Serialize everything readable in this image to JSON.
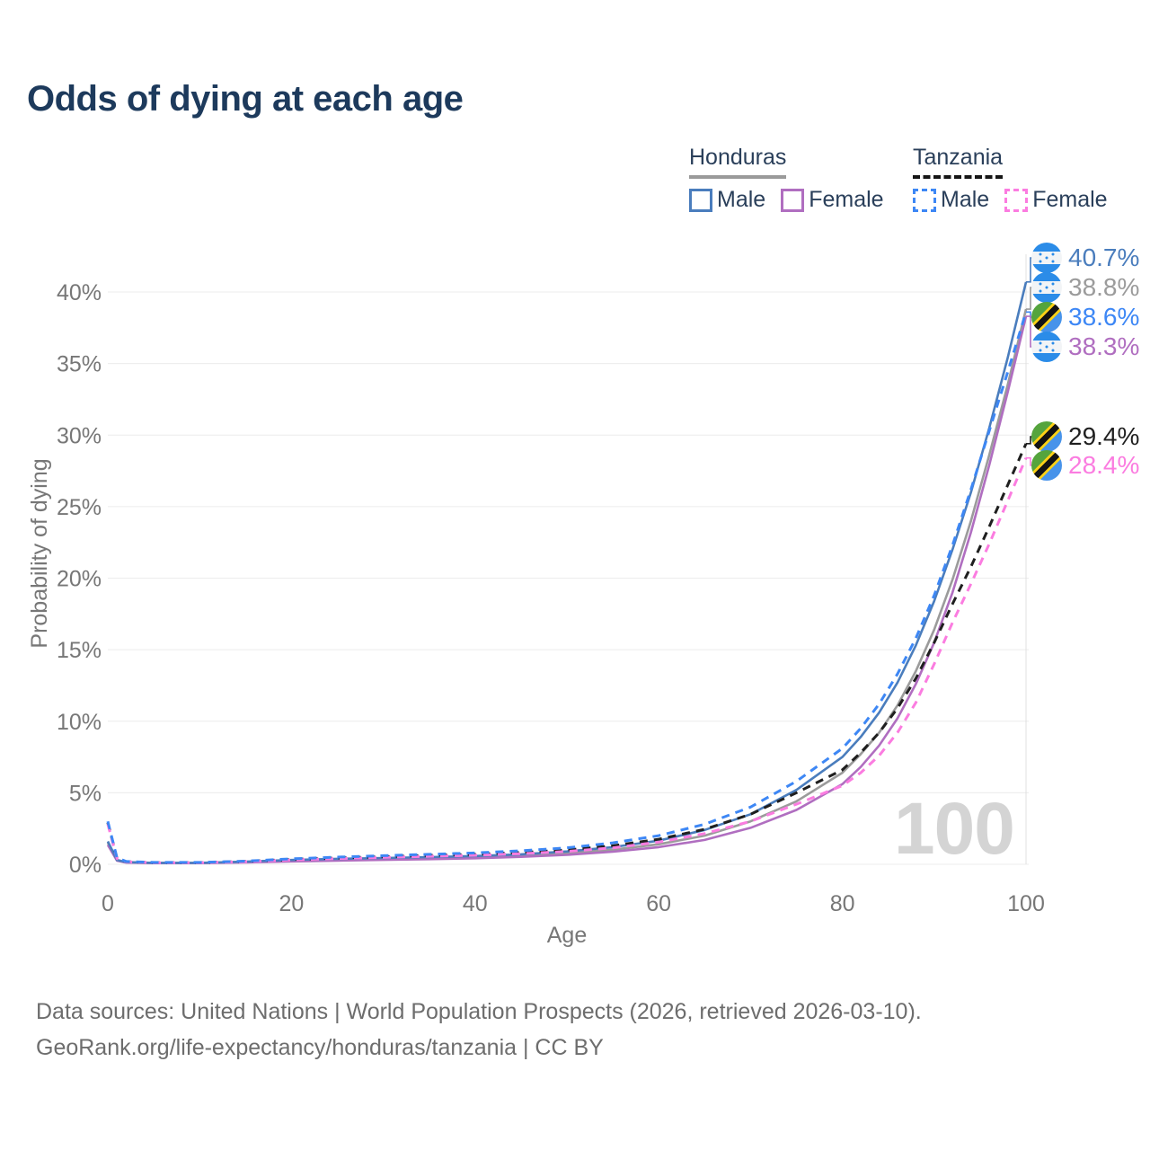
{
  "title": "Odds of dying at each age",
  "legend": {
    "groups": [
      {
        "country": "Honduras",
        "line_style": "solid",
        "underline_color": "#9a9a9a",
        "items": [
          {
            "label": "Male",
            "color": "#4a7dbd",
            "dashed": false
          },
          {
            "label": "Female",
            "color": "#b06ec0",
            "dashed": false
          }
        ]
      },
      {
        "country": "Tanzania",
        "line_style": "dashed",
        "underline_color": "#151515",
        "items": [
          {
            "label": "Male",
            "color": "#3d87f5",
            "dashed": true
          },
          {
            "label": "Female",
            "color": "#fb7ce0",
            "dashed": true
          }
        ]
      }
    ]
  },
  "chart_data": {
    "type": "line",
    "title": "Odds of dying at each age",
    "xlabel": "Age",
    "ylabel": "Probability of dying",
    "xlim": [
      0,
      100
    ],
    "ylim": [
      0,
      42
    ],
    "grid": "horizontal",
    "legend_position": "top-right",
    "watermark": "100",
    "x_ticks": [
      0,
      20,
      40,
      60,
      80,
      100
    ],
    "x_tick_labels": [
      "0",
      "20",
      "40",
      "60",
      "80",
      "100"
    ],
    "y_ticks": [
      0,
      5,
      10,
      15,
      20,
      25,
      30,
      35,
      40
    ],
    "y_tick_labels": [
      "0%",
      "5%",
      "10%",
      "15%",
      "20%",
      "25%",
      "30%",
      "35%",
      "40%"
    ],
    "ages": [
      0,
      1,
      2,
      5,
      10,
      15,
      20,
      25,
      30,
      35,
      40,
      45,
      50,
      55,
      60,
      65,
      70,
      75,
      80,
      82,
      84,
      86,
      88,
      90,
      92,
      94,
      96,
      98,
      100
    ],
    "series": [
      {
        "name": "Honduras Male",
        "country": "Honduras",
        "sex": "Male",
        "color": "#4a7dbd",
        "dashed": false,
        "flag_icon": "honduras-flag-icon",
        "end_label": "40.7%",
        "end_value": 40.7,
        "values": [
          1.6,
          0.3,
          0.15,
          0.1,
          0.1,
          0.18,
          0.3,
          0.38,
          0.44,
          0.5,
          0.58,
          0.7,
          0.9,
          1.2,
          1.65,
          2.4,
          3.5,
          5.2,
          7.5,
          8.9,
          10.6,
          12.7,
          15.3,
          18.4,
          22.0,
          26.0,
          30.5,
          35.4,
          40.7
        ]
      },
      {
        "name": "Honduras Both sexes",
        "country": "Honduras",
        "sex": "Both",
        "color": "#9b9b9b",
        "dashed": false,
        "flag_icon": "honduras-flag-icon",
        "end_label": "38.8%",
        "end_value": 38.8,
        "values": [
          1.5,
          0.28,
          0.13,
          0.09,
          0.09,
          0.16,
          0.26,
          0.33,
          0.38,
          0.44,
          0.5,
          0.6,
          0.78,
          1.02,
          1.4,
          2.0,
          3.0,
          4.4,
          6.4,
          7.7,
          9.2,
          11.1,
          13.5,
          16.4,
          19.9,
          24.0,
          28.6,
          33.5,
          38.8
        ]
      },
      {
        "name": "Tanzania Male",
        "country": "Tanzania",
        "sex": "Male",
        "color": "#3d87f5",
        "dashed": true,
        "flag_icon": "tanzania-flag-icon",
        "end_label": "38.6%",
        "end_value": 38.6,
        "values": [
          3.0,
          0.45,
          0.2,
          0.13,
          0.13,
          0.22,
          0.38,
          0.5,
          0.6,
          0.7,
          0.8,
          0.95,
          1.15,
          1.5,
          2.0,
          2.8,
          4.0,
          5.8,
          8.1,
          9.5,
          11.2,
          13.3,
          15.8,
          18.8,
          22.3,
          26.2,
          30.3,
          34.4,
          38.6
        ]
      },
      {
        "name": "Honduras Female",
        "country": "Honduras",
        "sex": "Female",
        "color": "#b06ec0",
        "dashed": false,
        "flag_icon": "honduras-flag-icon",
        "end_label": "38.3%",
        "end_value": 38.3,
        "values": [
          1.35,
          0.25,
          0.12,
          0.08,
          0.08,
          0.13,
          0.2,
          0.26,
          0.31,
          0.36,
          0.42,
          0.52,
          0.66,
          0.88,
          1.2,
          1.7,
          2.55,
          3.8,
          5.6,
          6.8,
          8.3,
          10.2,
          12.6,
          15.5,
          19.0,
          23.2,
          27.9,
          33.0,
          38.3
        ]
      },
      {
        "name": "Tanzania Both sexes",
        "country": "Tanzania",
        "sex": "Both",
        "color": "#1f1f1f",
        "dashed": true,
        "flag_icon": "tanzania-flag-icon",
        "end_label": "29.4%",
        "end_value": 29.4,
        "values": [
          2.9,
          0.42,
          0.19,
          0.12,
          0.12,
          0.2,
          0.34,
          0.44,
          0.53,
          0.62,
          0.7,
          0.83,
          1.0,
          1.3,
          1.75,
          2.45,
          3.5,
          5.0,
          6.6,
          7.8,
          9.2,
          10.9,
          13.0,
          15.5,
          18.2,
          20.8,
          23.6,
          26.5,
          29.4
        ]
      },
      {
        "name": "Tanzania Female",
        "country": "Tanzania",
        "sex": "Female",
        "color": "#fb7ce0",
        "dashed": true,
        "flag_icon": "tanzania-flag-icon",
        "end_label": "28.4%",
        "end_value": 28.4,
        "values": [
          2.8,
          0.4,
          0.18,
          0.11,
          0.11,
          0.18,
          0.3,
          0.4,
          0.48,
          0.56,
          0.63,
          0.74,
          0.9,
          1.15,
          1.55,
          2.15,
          3.0,
          4.2,
          5.5,
          6.4,
          7.6,
          9.2,
          11.3,
          14.0,
          16.9,
          19.6,
          22.4,
          25.4,
          28.4
        ]
      }
    ]
  },
  "colors": {
    "title": "#1d3a5c",
    "axis_text": "#777777",
    "gridline": "#ececec",
    "watermark": "#d4d4d4",
    "footer": "#6d6d6d"
  },
  "icons": {
    "honduras_flag": "honduras-flag-icon",
    "tanzania_flag": "tanzania-flag-icon"
  },
  "footer": {
    "line1": "Data sources: United Nations | World Population Prospects (2026, retrieved 2026-03-10).",
    "line2": "GeoRank.org/life-expectancy/honduras/tanzania | CC BY"
  }
}
